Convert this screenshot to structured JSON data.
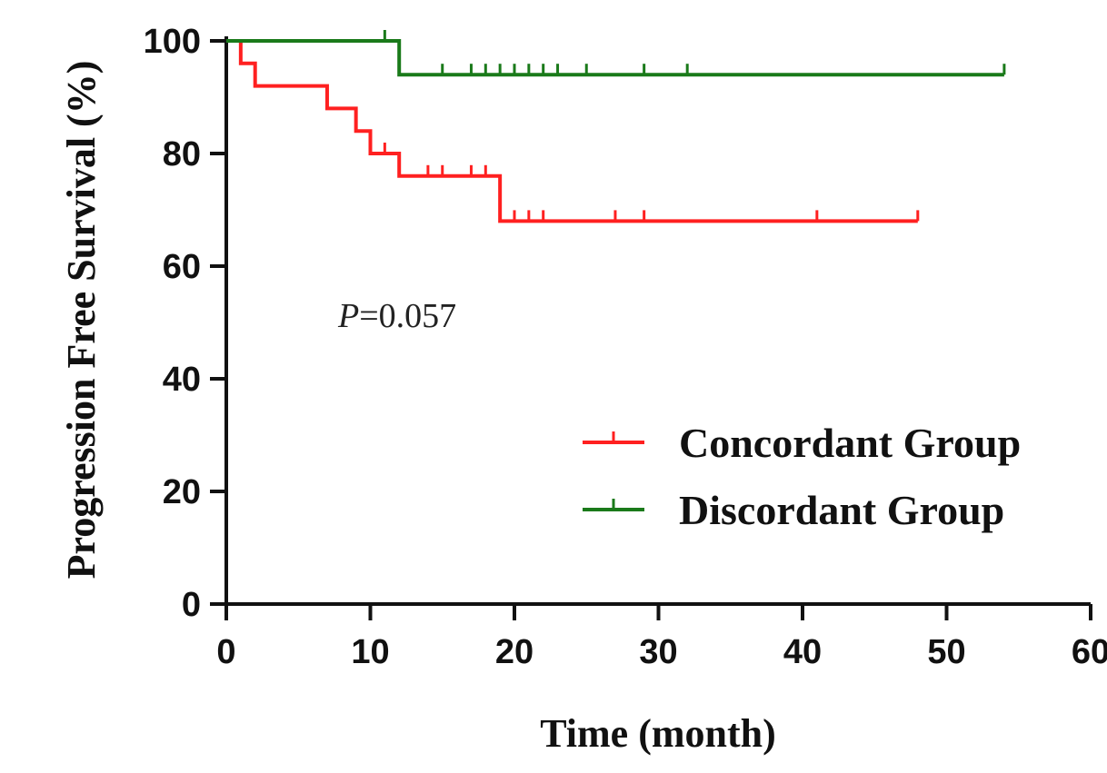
{
  "chart_data": {
    "type": "line",
    "title": "",
    "xlabel": "Time (month)",
    "ylabel": "Progression Free Survival (%)",
    "xlim": [
      0,
      60
    ],
    "ylim": [
      0,
      100
    ],
    "xticks": [
      0,
      10,
      20,
      30,
      40,
      50,
      60
    ],
    "yticks": [
      0,
      20,
      40,
      60,
      80,
      100
    ],
    "grid": false,
    "legend_position": "right",
    "annotation": {
      "label": "P",
      "value": "=0.057"
    },
    "series": [
      {
        "name": "Concordant Group",
        "color": "#ff2020",
        "steps": [
          {
            "x": 0,
            "y": 100
          },
          {
            "x": 1,
            "y": 96
          },
          {
            "x": 2,
            "y": 92
          },
          {
            "x": 7,
            "y": 88
          },
          {
            "x": 9,
            "y": 84
          },
          {
            "x": 10,
            "y": 80
          },
          {
            "x": 12,
            "y": 76
          },
          {
            "x": 19,
            "y": 68
          }
        ],
        "end_x": 48,
        "censored": [
          {
            "x": 11,
            "y": 80
          },
          {
            "x": 14,
            "y": 76
          },
          {
            "x": 15,
            "y": 76
          },
          {
            "x": 17,
            "y": 76
          },
          {
            "x": 18,
            "y": 76
          },
          {
            "x": 20,
            "y": 68
          },
          {
            "x": 21,
            "y": 68
          },
          {
            "x": 22,
            "y": 68
          },
          {
            "x": 27,
            "y": 68
          },
          {
            "x": 29,
            "y": 68
          },
          {
            "x": 41,
            "y": 68
          },
          {
            "x": 48,
            "y": 68
          }
        ]
      },
      {
        "name": "Discordant Group",
        "color": "#1a7a1a",
        "steps": [
          {
            "x": 0,
            "y": 100
          },
          {
            "x": 12,
            "y": 94
          }
        ],
        "end_x": 54,
        "censored": [
          {
            "x": 11,
            "y": 100
          },
          {
            "x": 15,
            "y": 94
          },
          {
            "x": 17,
            "y": 94
          },
          {
            "x": 18,
            "y": 94
          },
          {
            "x": 19,
            "y": 94
          },
          {
            "x": 20,
            "y": 94
          },
          {
            "x": 21,
            "y": 94
          },
          {
            "x": 22,
            "y": 94
          },
          {
            "x": 23,
            "y": 94
          },
          {
            "x": 25,
            "y": 94
          },
          {
            "x": 29,
            "y": 94
          },
          {
            "x": 32,
            "y": 94
          },
          {
            "x": 54,
            "y": 94
          }
        ]
      }
    ]
  }
}
